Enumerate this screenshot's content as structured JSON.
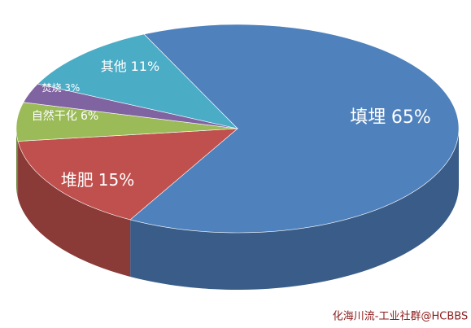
{
  "chart_data": {
    "type": "pie",
    "categories": [
      "填埋",
      "堆肥",
      "自然干化",
      "焚烧",
      "其他"
    ],
    "values": [
      65,
      15,
      6,
      3,
      11
    ],
    "value_labels": [
      "65%",
      "15%",
      "6%",
      "3%",
      "11%"
    ],
    "colors": [
      "#4f81bd",
      "#c0504d",
      "#9bbb59",
      "#8064a2",
      "#4bacc6"
    ],
    "credit": "化海川流-工业社群@HCBBS"
  }
}
